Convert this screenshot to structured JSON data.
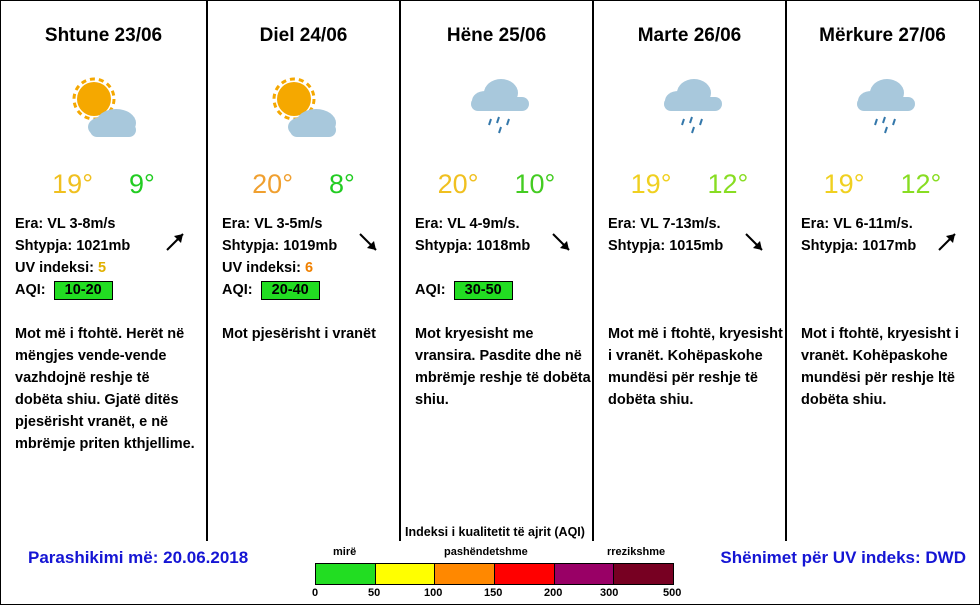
{
  "days": [
    {
      "name": "Shtune 23/06",
      "icon": "sun-cloud-icon",
      "tmax": "19°",
      "tmin": "9°",
      "tmax_color": "#f0c020",
      "tmin_color": "#22cc22",
      "wind": "Era: VL 3-8m/s",
      "pressure": "Shtypja: 1021mb",
      "uv_label": "UV indeksi: ",
      "uv_value": "5",
      "uv_color": "#e0b000",
      "aqi_label": "AQI:",
      "aqi_value": "10-20",
      "arrow": "ne",
      "desc": "Mot më i ftohtë. Herët në mëngjes vende-vende vazhdojnë reshje të dobëta shiu.  Gjatë ditës pjesërisht vranët, e në mbrëmje priten kthjellime."
    },
    {
      "name": "Diel 24/06",
      "icon": "sun-cloud-icon",
      "tmax": "20°",
      "tmin": "8°",
      "tmax_color": "#f0a030",
      "tmin_color": "#22cc22",
      "wind": "Era: VL 3-5m/s",
      "pressure": "Shtypja: 1019mb",
      "uv_label": "UV indeksi: ",
      "uv_value": "6",
      "uv_color": "#f08000",
      "aqi_label": "AQI:",
      "aqi_value": "20-40",
      "arrow": "se",
      "desc": "Mot pjesërisht i vranët"
    },
    {
      "name": "Hëne 25/06",
      "icon": "rain-cloud-icon",
      "tmax": "20°",
      "tmin": "10°",
      "tmax_color": "#f0c020",
      "tmin_color": "#44cc22",
      "wind": "Era: VL 4-9m/s.",
      "pressure": "Shtypja: 1018mb",
      "uv_label": "",
      "uv_value": "",
      "uv_color": "#000000",
      "aqi_label": "AQI:",
      "aqi_value": "30-50",
      "arrow": "se",
      "desc": "Mot kryesisht me vransira.  Pasdite dhe në mbrëmje reshje të dobëta shiu."
    },
    {
      "name": "Marte 26/06",
      "icon": "rain-cloud-icon",
      "tmax": "19°",
      "tmin": "12°",
      "tmax_color": "#f0d020",
      "tmin_color": "#88dd22",
      "wind": "Era: VL 7-13m/s.",
      "pressure": "Shtypja: 1015mb",
      "uv_label": "",
      "uv_value": "",
      "uv_color": "#000000",
      "aqi_label": "",
      "aqi_value": "",
      "arrow": "se",
      "desc": "Mot më i ftohtë, kryesisht i vranët. Kohëpaskohe mundësi për reshje të dobëta shiu."
    },
    {
      "name": "Mërkure 27/06",
      "icon": "rain-cloud-icon",
      "tmax": "19°",
      "tmin": "12°",
      "tmax_color": "#f0d020",
      "tmin_color": "#88dd22",
      "wind": "Era: VL 6-11m/s.",
      "pressure": "Shtypja: 1017mb",
      "uv_label": "",
      "uv_value": "",
      "uv_color": "#000000",
      "aqi_label": "",
      "aqi_value": "",
      "arrow": "ne",
      "desc": "Mot i ftohtë, kryesisht i vranët.  Kohëpaskohe mundësi për reshje ltë dobëta shiu."
    }
  ],
  "footer": {
    "issued": "Parashikimi më: 20.06.2018",
    "uv_note": "Shënimet për UV indeks: DWD"
  },
  "aqi_scale": {
    "title": "Indeksi i kualitetit të ajrit (AQI)",
    "words": [
      "mirë",
      "pashëndetshme",
      "rrezikshme"
    ],
    "colors": [
      "#22dd22",
      "#ffff00",
      "#ff8800",
      "#ff0000",
      "#990066",
      "#770022"
    ],
    "ticks": [
      "0",
      "50",
      "100",
      "150",
      "200",
      "300",
      "500"
    ]
  }
}
